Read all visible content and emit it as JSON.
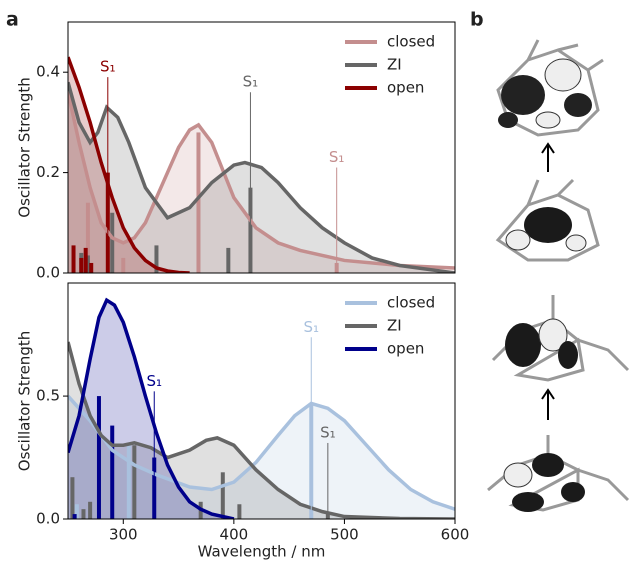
{
  "panel_labels": [
    "a",
    "b"
  ],
  "chart_data": [
    {
      "type": "spectrum",
      "ylabel": "Oscillator Strength",
      "xlim": [
        250,
        600
      ],
      "ylim": [
        0,
        0.5
      ],
      "yticks": [
        {
          "value": 0,
          "label": "0.0"
        },
        {
          "value": 0.2,
          "label": "0.2"
        },
        {
          "value": 0.4,
          "label": "0.4"
        }
      ],
      "legend": "upper right",
      "series": [
        {
          "name": "closed",
          "color": "#c48e8e",
          "x": [
            250,
            260,
            270,
            280,
            290,
            300,
            310,
            320,
            330,
            340,
            350,
            360,
            368,
            380,
            400,
            420,
            440,
            460,
            480,
            500,
            550,
            600
          ],
          "values": [
            0.36,
            0.26,
            0.17,
            0.1,
            0.07,
            0.06,
            0.07,
            0.1,
            0.15,
            0.2,
            0.25,
            0.285,
            0.295,
            0.26,
            0.15,
            0.09,
            0.06,
            0.045,
            0.035,
            0.025,
            0.015,
            0.01
          ],
          "sticks": {
            "x": [
              268,
              300,
              368,
              493
            ],
            "values": [
              0.14,
              0.03,
              0.28,
              0.02
            ]
          }
        },
        {
          "name": "ZI",
          "color": "#666666",
          "x": [
            250,
            260,
            270,
            277,
            285,
            295,
            305,
            320,
            340,
            360,
            380,
            400,
            410,
            425,
            440,
            460,
            480,
            500,
            525,
            550,
            600
          ],
          "values": [
            0.38,
            0.3,
            0.26,
            0.28,
            0.33,
            0.31,
            0.26,
            0.17,
            0.11,
            0.13,
            0.18,
            0.215,
            0.22,
            0.21,
            0.18,
            0.13,
            0.09,
            0.06,
            0.03,
            0.015,
            0.0
          ],
          "sticks": {
            "x": [
              262,
              268,
              290,
              330,
              395,
              415
            ],
            "values": [
              0.04,
              0.035,
              0.12,
              0.055,
              0.05,
              0.17
            ]
          }
        },
        {
          "name": "open",
          "color": "#8b0000",
          "x": [
            250,
            260,
            270,
            280,
            290,
            300,
            310,
            320,
            330,
            340,
            350,
            360
          ],
          "values": [
            0.43,
            0.37,
            0.3,
            0.22,
            0.15,
            0.09,
            0.05,
            0.025,
            0.01,
            0.004,
            0.001,
            0.0
          ],
          "sticks": {
            "x": [
              255,
              262,
              266,
              271,
              286
            ],
            "values": [
              0.055,
              0.03,
              0.05,
              0.02,
              0.2
            ]
          }
        }
      ],
      "annotations": [
        {
          "text": "S₁",
          "x": 286,
          "y": 0.41,
          "color": "#8b0000"
        },
        {
          "text": "S₁",
          "x": 415,
          "y": 0.38,
          "color": "#666666"
        },
        {
          "text": "S₁",
          "x": 493,
          "y": 0.23,
          "color": "#c48e8e"
        }
      ]
    },
    {
      "type": "spectrum",
      "ylabel": "Oscillator Strength",
      "xlabel": "Wavelength / nm",
      "xlim": [
        250,
        600
      ],
      "ylim": [
        0,
        0.96
      ],
      "yticks": [
        {
          "value": 0,
          "label": "0.0"
        },
        {
          "value": 0.5,
          "label": "0.5"
        }
      ],
      "xticks": [
        300,
        400,
        500,
        600
      ],
      "legend": "upper right",
      "series": [
        {
          "name": "closed",
          "color": "#a9c1de",
          "x": [
            250,
            270,
            290,
            310,
            330,
            360,
            380,
            400,
            420,
            440,
            455,
            470,
            485,
            500,
            520,
            540,
            560,
            580,
            600
          ],
          "values": [
            0.5,
            0.4,
            0.28,
            0.22,
            0.18,
            0.13,
            0.12,
            0.15,
            0.23,
            0.34,
            0.42,
            0.47,
            0.45,
            0.4,
            0.3,
            0.2,
            0.12,
            0.07,
            0.04
          ],
          "sticks": {
            "x": [
              258,
              305,
              470
            ],
            "values": [
              0.06,
              0.3,
              0.47
            ]
          }
        },
        {
          "name": "ZI",
          "color": "#666666",
          "x": [
            250,
            260,
            270,
            280,
            290,
            300,
            310,
            325,
            340,
            360,
            375,
            385,
            400,
            420,
            440,
            460,
            480,
            500,
            550,
            600
          ],
          "values": [
            0.72,
            0.55,
            0.42,
            0.34,
            0.3,
            0.3,
            0.31,
            0.29,
            0.25,
            0.28,
            0.32,
            0.33,
            0.3,
            0.2,
            0.12,
            0.06,
            0.03,
            0.01,
            0.002,
            0.0
          ],
          "sticks": {
            "x": [
              254,
              264,
              270,
              310,
              370,
              390,
              405,
              485
            ],
            "values": [
              0.17,
              0.04,
              0.07,
              0.3,
              0.07,
              0.19,
              0.06,
              0.03
            ]
          }
        },
        {
          "name": "open",
          "color": "#00008b",
          "x": [
            250,
            260,
            270,
            278,
            285,
            292,
            300,
            310,
            320,
            330,
            340,
            350,
            360,
            370,
            380,
            400
          ],
          "values": [
            0.27,
            0.42,
            0.65,
            0.82,
            0.89,
            0.87,
            0.8,
            0.66,
            0.5,
            0.35,
            0.22,
            0.13,
            0.07,
            0.04,
            0.02,
            0.0
          ],
          "sticks": {
            "x": [
              256,
              278,
              290,
              328
            ],
            "values": [
              0.02,
              0.5,
              0.38,
              0.25
            ]
          }
        }
      ],
      "annotations": [
        {
          "text": "S₁",
          "x": 328,
          "y": 0.56,
          "color": "#00008b"
        },
        {
          "text": "S₁",
          "x": 470,
          "y": 0.78,
          "color": "#a9c1de"
        },
        {
          "text": "S₁",
          "x": 485,
          "y": 0.35,
          "color": "#666666"
        }
      ]
    }
  ]
}
